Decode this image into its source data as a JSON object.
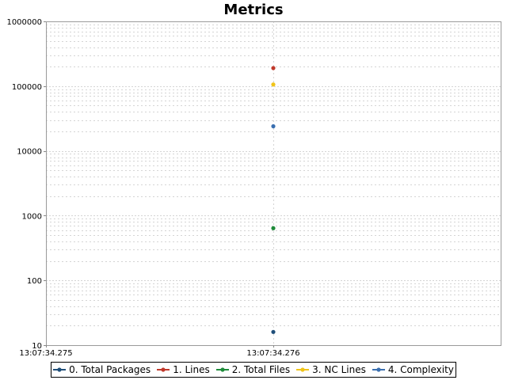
{
  "chart_data": {
    "type": "scatter",
    "title": "Metrics",
    "y_scale": "log",
    "ylim": [
      10,
      1000000
    ],
    "y_ticks": [
      "10",
      "100",
      "1000",
      "10000",
      "100000",
      "1000000"
    ],
    "x_ticks": [
      "13:07:34.275",
      "13:07:34.276"
    ],
    "grid": true,
    "legend_position": "bottom",
    "series": [
      {
        "name": "0. Total Packages",
        "color": "#1f4e79",
        "points": [
          {
            "x": "13:07:34.276",
            "y": 16
          }
        ]
      },
      {
        "name": "1. Lines",
        "color": "#c0392b",
        "points": [
          {
            "x": "13:07:34.276",
            "y": 190000
          }
        ]
      },
      {
        "name": "2. Total Files",
        "color": "#1e8b3a",
        "points": [
          {
            "x": "13:07:34.276",
            "y": 640
          }
        ]
      },
      {
        "name": "3. NC Lines",
        "color": "#f0c419",
        "points": [
          {
            "x": "13:07:34.276",
            "y": 106000
          }
        ]
      },
      {
        "name": "4. Complexity",
        "color": "#3a6fb0",
        "points": [
          {
            "x": "13:07:34.276",
            "y": 24000
          }
        ]
      }
    ]
  }
}
